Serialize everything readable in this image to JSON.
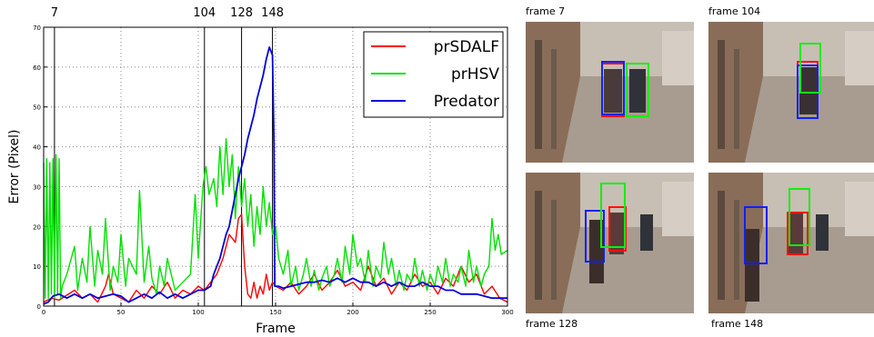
{
  "chart_data": {
    "type": "line",
    "xlabel": "Frame",
    "ylabel": "Error (Pixel)",
    "xlim": [
      0,
      300
    ],
    "ylim": [
      0,
      70
    ],
    "xticks": [
      "0",
      "50",
      "100",
      "150",
      "200",
      "250",
      "300"
    ],
    "yticks": [
      "0",
      "10",
      "20",
      "30",
      "40",
      "50",
      "60",
      "70"
    ],
    "grid": true,
    "legend_position": "top-right",
    "markers": [
      "7",
      "104",
      "128",
      "148"
    ],
    "series": [
      {
        "name": "prSDALF",
        "color": "#ff0000",
        "points": [
          [
            0,
            1
          ],
          [
            5,
            2
          ],
          [
            10,
            1.5
          ],
          [
            20,
            4
          ],
          [
            25,
            2
          ],
          [
            30,
            3
          ],
          [
            35,
            1
          ],
          [
            40,
            5
          ],
          [
            42,
            8
          ],
          [
            45,
            3
          ],
          [
            50,
            2
          ],
          [
            55,
            1
          ],
          [
            60,
            4
          ],
          [
            65,
            2
          ],
          [
            70,
            5
          ],
          [
            75,
            3
          ],
          [
            80,
            6
          ],
          [
            85,
            2
          ],
          [
            90,
            4
          ],
          [
            95,
            3
          ],
          [
            100,
            5
          ],
          [
            104,
            4
          ],
          [
            108,
            6
          ],
          [
            112,
            8
          ],
          [
            116,
            12
          ],
          [
            120,
            18
          ],
          [
            124,
            16
          ],
          [
            126,
            22
          ],
          [
            128,
            23
          ],
          [
            130,
            10
          ],
          [
            132,
            3
          ],
          [
            134,
            2
          ],
          [
            136,
            6
          ],
          [
            138,
            2
          ],
          [
            140,
            5
          ],
          [
            142,
            3
          ],
          [
            144,
            8
          ],
          [
            146,
            4
          ],
          [
            148,
            6
          ],
          [
            150,
            5
          ],
          [
            155,
            4
          ],
          [
            160,
            6
          ],
          [
            165,
            3
          ],
          [
            170,
            5
          ],
          [
            175,
            8
          ],
          [
            180,
            4
          ],
          [
            185,
            6
          ],
          [
            190,
            9
          ],
          [
            195,
            5
          ],
          [
            200,
            6
          ],
          [
            205,
            4
          ],
          [
            210,
            10
          ],
          [
            215,
            5
          ],
          [
            220,
            7
          ],
          [
            225,
            3
          ],
          [
            230,
            6
          ],
          [
            235,
            4
          ],
          [
            240,
            8
          ],
          [
            245,
            5
          ],
          [
            250,
            6
          ],
          [
            255,
            3
          ],
          [
            260,
            7
          ],
          [
            265,
            5
          ],
          [
            270,
            10
          ],
          [
            275,
            6
          ],
          [
            280,
            8
          ],
          [
            285,
            3
          ],
          [
            290,
            5
          ],
          [
            295,
            2
          ],
          [
            300,
            1
          ]
        ]
      },
      {
        "name": "prHSV",
        "color": "#00e000",
        "points": [
          [
            0,
            36
          ],
          [
            1,
            2
          ],
          [
            2,
            37
          ],
          [
            3,
            2
          ],
          [
            4,
            36
          ],
          [
            5,
            3
          ],
          [
            6,
            37
          ],
          [
            7,
            2
          ],
          [
            8,
            38
          ],
          [
            9,
            3
          ],
          [
            10,
            37
          ],
          [
            11,
            2
          ],
          [
            12,
            5
          ],
          [
            15,
            8
          ],
          [
            20,
            15
          ],
          [
            22,
            4
          ],
          [
            25,
            12
          ],
          [
            28,
            6
          ],
          [
            30,
            20
          ],
          [
            33,
            5
          ],
          [
            35,
            14
          ],
          [
            38,
            8
          ],
          [
            40,
            22
          ],
          [
            43,
            4
          ],
          [
            45,
            10
          ],
          [
            48,
            6
          ],
          [
            50,
            18
          ],
          [
            53,
            5
          ],
          [
            55,
            12
          ],
          [
            60,
            8
          ],
          [
            62,
            29
          ],
          [
            65,
            6
          ],
          [
            68,
            15
          ],
          [
            70,
            7
          ],
          [
            73,
            3
          ],
          [
            75,
            10
          ],
          [
            78,
            5
          ],
          [
            80,
            12
          ],
          [
            85,
            4
          ],
          [
            90,
            6
          ],
          [
            95,
            8
          ],
          [
            98,
            28
          ],
          [
            100,
            12
          ],
          [
            103,
            30
          ],
          [
            105,
            35
          ],
          [
            107,
            28
          ],
          [
            110,
            32
          ],
          [
            112,
            25
          ],
          [
            114,
            40
          ],
          [
            116,
            28
          ],
          [
            118,
            42
          ],
          [
            120,
            30
          ],
          [
            122,
            38
          ],
          [
            124,
            22
          ],
          [
            126,
            35
          ],
          [
            128,
            25
          ],
          [
            130,
            32
          ],
          [
            132,
            20
          ],
          [
            134,
            28
          ],
          [
            136,
            15
          ],
          [
            138,
            25
          ],
          [
            140,
            18
          ],
          [
            142,
            30
          ],
          [
            144,
            20
          ],
          [
            146,
            26
          ],
          [
            148,
            18
          ],
          [
            150,
            20
          ],
          [
            152,
            12
          ],
          [
            155,
            8
          ],
          [
            158,
            14
          ],
          [
            160,
            5
          ],
          [
            163,
            10
          ],
          [
            165,
            4
          ],
          [
            168,
            8
          ],
          [
            170,
            12
          ],
          [
            173,
            5
          ],
          [
            175,
            9
          ],
          [
            178,
            4
          ],
          [
            180,
            7
          ],
          [
            183,
            10
          ],
          [
            185,
            5
          ],
          [
            188,
            8
          ],
          [
            190,
            12
          ],
          [
            193,
            6
          ],
          [
            195,
            15
          ],
          [
            198,
            8
          ],
          [
            200,
            18
          ],
          [
            203,
            10
          ],
          [
            205,
            12
          ],
          [
            208,
            6
          ],
          [
            210,
            14
          ],
          [
            213,
            5
          ],
          [
            215,
            10
          ],
          [
            218,
            7
          ],
          [
            220,
            16
          ],
          [
            223,
            8
          ],
          [
            225,
            12
          ],
          [
            228,
            5
          ],
          [
            230,
            9
          ],
          [
            233,
            4
          ],
          [
            235,
            8
          ],
          [
            238,
            6
          ],
          [
            240,
            12
          ],
          [
            243,
            5
          ],
          [
            245,
            9
          ],
          [
            248,
            4
          ],
          [
            250,
            8
          ],
          [
            253,
            5
          ],
          [
            255,
            10
          ],
          [
            258,
            6
          ],
          [
            260,
            12
          ],
          [
            263,
            5
          ],
          [
            265,
            8
          ],
          [
            268,
            6
          ],
          [
            270,
            10
          ],
          [
            273,
            5
          ],
          [
            275,
            14
          ],
          [
            278,
            6
          ],
          [
            280,
            10
          ],
          [
            283,
            5
          ],
          [
            285,
            8
          ],
          [
            288,
            10
          ],
          [
            290,
            22
          ],
          [
            292,
            14
          ],
          [
            294,
            18
          ],
          [
            296,
            13
          ],
          [
            300,
            14
          ]
        ]
      },
      {
        "name": "Predator",
        "color": "#0000dd",
        "points": [
          [
            0,
            0.5
          ],
          [
            3,
            1
          ],
          [
            6,
            2.5
          ],
          [
            10,
            3
          ],
          [
            15,
            2
          ],
          [
            20,
            3
          ],
          [
            25,
            2
          ],
          [
            30,
            3
          ],
          [
            35,
            2
          ],
          [
            40,
            2.5
          ],
          [
            45,
            3
          ],
          [
            50,
            2.5
          ],
          [
            55,
            1
          ],
          [
            60,
            2
          ],
          [
            65,
            3
          ],
          [
            70,
            2
          ],
          [
            75,
            3.5
          ],
          [
            80,
            2
          ],
          [
            85,
            3
          ],
          [
            90,
            2
          ],
          [
            95,
            3
          ],
          [
            100,
            4
          ],
          [
            104,
            4
          ],
          [
            108,
            5
          ],
          [
            110,
            8
          ],
          [
            112,
            10
          ],
          [
            114,
            12
          ],
          [
            116,
            15
          ],
          [
            118,
            18
          ],
          [
            120,
            20
          ],
          [
            122,
            24
          ],
          [
            124,
            28
          ],
          [
            126,
            32
          ],
          [
            128,
            35
          ],
          [
            130,
            38
          ],
          [
            132,
            42
          ],
          [
            134,
            45
          ],
          [
            136,
            48
          ],
          [
            138,
            52
          ],
          [
            140,
            55
          ],
          [
            142,
            58
          ],
          [
            144,
            62
          ],
          [
            146,
            65
          ],
          [
            147,
            64
          ],
          [
            148,
            63
          ],
          [
            149,
            40
          ],
          [
            149.5,
            5
          ],
          [
            152,
            5
          ],
          [
            155,
            4.5
          ],
          [
            160,
            5
          ],
          [
            165,
            5.5
          ],
          [
            170,
            6
          ],
          [
            175,
            6
          ],
          [
            180,
            6.5
          ],
          [
            185,
            6
          ],
          [
            190,
            7
          ],
          [
            195,
            6
          ],
          [
            200,
            7
          ],
          [
            205,
            6
          ],
          [
            210,
            6
          ],
          [
            215,
            5
          ],
          [
            220,
            6
          ],
          [
            225,
            5
          ],
          [
            230,
            6
          ],
          [
            235,
            5
          ],
          [
            240,
            5
          ],
          [
            245,
            6
          ],
          [
            250,
            5
          ],
          [
            255,
            5
          ],
          [
            260,
            4
          ],
          [
            265,
            4
          ],
          [
            270,
            3
          ],
          [
            275,
            3
          ],
          [
            280,
            3
          ],
          [
            285,
            2.5
          ],
          [
            290,
            2
          ],
          [
            295,
            2
          ],
          [
            300,
            2
          ]
        ]
      }
    ]
  },
  "frames": [
    {
      "label": "frame 7"
    },
    {
      "label": "frame 104"
    },
    {
      "label": "frame 128"
    },
    {
      "label": "frame 148"
    }
  ]
}
